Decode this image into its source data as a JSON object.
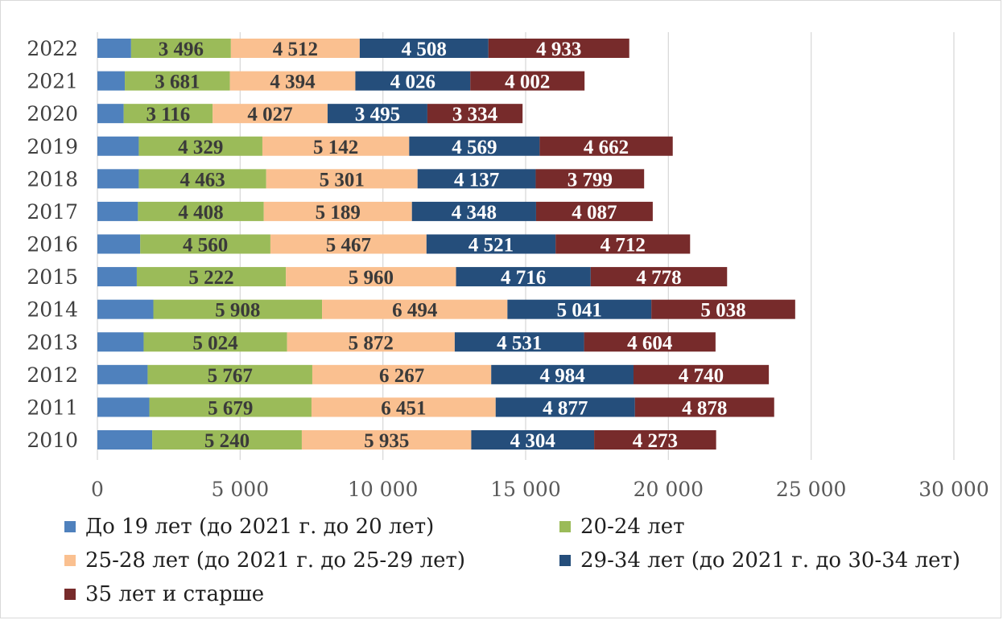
{
  "chart_data": {
    "type": "bar",
    "orientation": "horizontal",
    "stacked": true,
    "title": "",
    "xlabel": "",
    "ylabel": "",
    "categories": [
      "2010",
      "2011",
      "2012",
      "2013",
      "2014",
      "2015",
      "2016",
      "2017",
      "2018",
      "2019",
      "2020",
      "2021",
      "2022"
    ],
    "xlim": [
      0,
      30000
    ],
    "xticks": [
      0,
      5000,
      10000,
      15000,
      20000,
      25000,
      30000
    ],
    "xtick_labels": [
      "0",
      "5 000",
      "10 000",
      "15 000",
      "20 000",
      "25 000",
      "30 000"
    ],
    "grid": "vertical",
    "legend_position": "bottom",
    "series": [
      {
        "name": "До 19 лет (до 2021 г. до 20 лет)",
        "color": "#4f81bd",
        "values": [
          1920,
          1820,
          1760,
          1620,
          1960,
          1380,
          1500,
          1420,
          1450,
          1450,
          920,
          960,
          1180
        ],
        "labels": [
          "",
          "",
          "",
          "",
          "",
          "",
          "",
          "",
          "",
          "",
          "",
          "",
          ""
        ]
      },
      {
        "name": "20-24 лет",
        "color": "#9bbb59",
        "values": [
          5240,
          5679,
          5767,
          5024,
          5908,
          5222,
          4560,
          4408,
          4463,
          4329,
          3116,
          3681,
          3496
        ],
        "labels": [
          "5 240",
          "5 679",
          "5 767",
          "5 024",
          "5 908",
          "5 222",
          "4 560",
          "4 408",
          "4 463",
          "4 329",
          "3 116",
          "3 681",
          "3 496"
        ]
      },
      {
        "name": "25-28 лет (до 2021 г. до 25-29 лет)",
        "color": "#fac090",
        "values": [
          5935,
          6451,
          6267,
          5872,
          6494,
          5960,
          5467,
          5189,
          5301,
          5142,
          4027,
          4394,
          4512
        ],
        "labels": [
          "5 935",
          "6 451",
          "6 267",
          "5 872",
          "6 494",
          "5 960",
          "5 467",
          "5 189",
          "5 301",
          "5 142",
          "4 027",
          "4 394",
          "4 512"
        ]
      },
      {
        "name": "29-34 лет (до 2021 г. до 30-34 лет)",
        "color": "#254e7b",
        "values": [
          4304,
          4877,
          4984,
          4531,
          5041,
          4716,
          4521,
          4348,
          4137,
          4569,
          3495,
          4026,
          4508
        ],
        "labels": [
          "4 304",
          "4 877",
          "4 984",
          "4 531",
          "5 041",
          "4 716",
          "4 521",
          "4 348",
          "4 137",
          "4 569",
          "3 495",
          "4 026",
          "4 508"
        ]
      },
      {
        "name": "35 лет и старше",
        "color": "#772b2b",
        "values": [
          4273,
          4878,
          4740,
          4604,
          5038,
          4778,
          4712,
          4087,
          3799,
          4662,
          3334,
          4002,
          4933
        ],
        "labels": [
          "4 273",
          "4 878",
          "4 740",
          "4 604",
          "5 038",
          "4 778",
          "4 712",
          "4 087",
          "3 799",
          "4 662",
          "3 334",
          "4 002",
          "4 933"
        ]
      }
    ]
  }
}
